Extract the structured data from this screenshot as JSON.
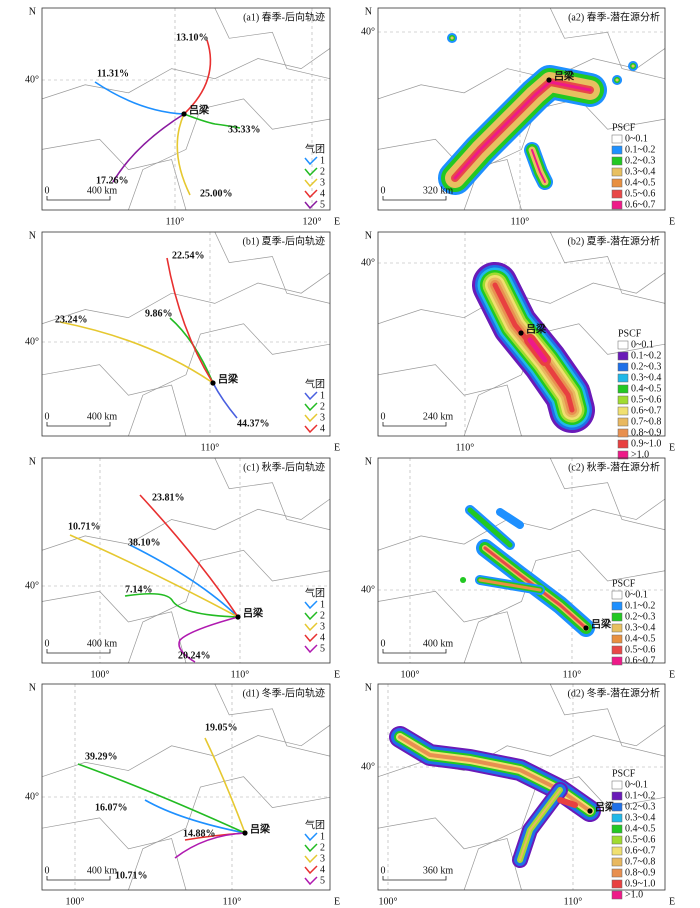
{
  "panels": [
    {
      "title": "(a1) 春季-后向轨迹",
      "north": "N",
      "east": "E",
      "lat": [
        "40°"
      ],
      "lon": [
        "110°",
        "120°"
      ],
      "scale": [
        "0",
        "400 km"
      ],
      "city": "吕梁",
      "legend_title": "气团",
      "legend": [
        {
          "label": "1",
          "color": "#1e90ff"
        },
        {
          "label": "2",
          "color": "#22bb22"
        },
        {
          "label": "3",
          "color": "#e6c830"
        },
        {
          "label": "4",
          "color": "#e83030"
        },
        {
          "label": "5",
          "color": "#8a1aa0"
        }
      ],
      "trajectories": [
        "11.31%",
        "33.33%",
        "25.00%",
        "13.10%",
        "17.26%"
      ]
    },
    {
      "title": "(a2) 春季-潜在源分析",
      "north": "N",
      "east": "E",
      "lat": [
        "40°"
      ],
      "lon": [
        "110°"
      ],
      "scale": [
        "0",
        "320 km"
      ],
      "city": "吕梁",
      "legend_title": "PSCF",
      "legend": [
        {
          "label": "0~0.1",
          "color": "#ffffff"
        },
        {
          "label": "0.1~0.2",
          "color": "#1e90ff"
        },
        {
          "label": "0.2~0.3",
          "color": "#22c822"
        },
        {
          "label": "0.3~0.4",
          "color": "#e8c060"
        },
        {
          "label": "0.4~0.5",
          "color": "#e89040"
        },
        {
          "label": "0.5~0.6",
          "color": "#e84848"
        },
        {
          "label": "0.6~0.7",
          "color": "#ee1a88"
        }
      ]
    },
    {
      "title": "(b1) 夏季-后向轨迹",
      "north": "N",
      "east": "E",
      "lat": [
        "40°"
      ],
      "lon": [
        "110°"
      ],
      "scale": [
        "0",
        "400 km"
      ],
      "city": "吕梁",
      "legend_title": "气团",
      "legend": [
        {
          "label": "1",
          "color": "#4a60e0"
        },
        {
          "label": "2",
          "color": "#22bb22"
        },
        {
          "label": "3",
          "color": "#e6c830"
        },
        {
          "label": "4",
          "color": "#e83030"
        }
      ],
      "trajectories": [
        "44.37%",
        "9.86%",
        "23.24%",
        "22.54%"
      ]
    },
    {
      "title": "(b2) 夏季-潜在源分析",
      "north": "N",
      "east": "E",
      "lat": [
        "40°"
      ],
      "lon": [
        "110°"
      ],
      "scale": [
        "0",
        "240 km"
      ],
      "city": "吕梁",
      "legend_title": "PSCF",
      "legend": [
        {
          "label": "0~0.1",
          "color": "#ffffff"
        },
        {
          "label": "0.1~0.2",
          "color": "#6a1ab8"
        },
        {
          "label": "0.2~0.3",
          "color": "#1e70e8"
        },
        {
          "label": "0.3~0.4",
          "color": "#20b8e8"
        },
        {
          "label": "0.4~0.5",
          "color": "#22c822"
        },
        {
          "label": "0.5~0.6",
          "color": "#a0dc30"
        },
        {
          "label": "0.6~0.7",
          "color": "#f0e070"
        },
        {
          "label": "0.7~0.8",
          "color": "#e8b860"
        },
        {
          "label": "0.8~0.9",
          "color": "#e89050"
        },
        {
          "label": "0.9~1.0",
          "color": "#e84040"
        },
        {
          "label": ">1.0",
          "color": "#ee1a88"
        }
      ]
    },
    {
      "title": "(c1) 秋季-后向轨迹",
      "north": "N",
      "east": "E",
      "lat": [
        "40°"
      ],
      "lon": [
        "100°",
        "110°"
      ],
      "scale": [
        "0",
        "400 km"
      ],
      "city": "吕梁",
      "legend_title": "气团",
      "legend": [
        {
          "label": "1",
          "color": "#1e90ff"
        },
        {
          "label": "2",
          "color": "#22bb22"
        },
        {
          "label": "3",
          "color": "#e6c830"
        },
        {
          "label": "4",
          "color": "#e83030"
        },
        {
          "label": "5",
          "color": "#b01ab0"
        }
      ],
      "trajectories": [
        "38.10%",
        "7.14%",
        "10.71%",
        "23.81%",
        "20.24%"
      ]
    },
    {
      "title": "(c2) 秋季-潜在源分析",
      "north": "N",
      "east": "E",
      "lat": [
        "40°"
      ],
      "lon": [
        "100°",
        "110°"
      ],
      "scale": [
        "0",
        "400 km"
      ],
      "city": "吕梁",
      "legend_title": "PSCF",
      "legend": [
        {
          "label": "0~0.1",
          "color": "#ffffff"
        },
        {
          "label": "0.1~0.2",
          "color": "#1e90ff"
        },
        {
          "label": "0.2~0.3",
          "color": "#22c822"
        },
        {
          "label": "0.3~0.4",
          "color": "#e8c060"
        },
        {
          "label": "0.4~0.5",
          "color": "#e89040"
        },
        {
          "label": "0.5~0.6",
          "color": "#e84848"
        },
        {
          "label": "0.6~0.7",
          "color": "#ee1a88"
        }
      ]
    },
    {
      "title": "(d1) 冬季-后向轨迹",
      "north": "N",
      "east": "E",
      "lat": [
        "40°"
      ],
      "lon": [
        "100°",
        "110°"
      ],
      "scale": [
        "0",
        "400 km"
      ],
      "city": "吕梁",
      "legend_title": "气团",
      "legend": [
        {
          "label": "1",
          "color": "#1e90ff"
        },
        {
          "label": "2",
          "color": "#22bb22"
        },
        {
          "label": "3",
          "color": "#e6c830"
        },
        {
          "label": "4",
          "color": "#e83030"
        },
        {
          "label": "5",
          "color": "#b01ab0"
        }
      ],
      "trajectories": [
        "16.07%",
        "39.29%",
        "19.05%",
        "14.88%",
        "10.71%"
      ]
    },
    {
      "title": "(d2) 冬季-潜在源分析",
      "north": "N",
      "east": "E",
      "lat": [
        "40°"
      ],
      "lon": [
        "100°",
        "110°"
      ],
      "scale": [
        "0",
        "360 km"
      ],
      "city": "吕梁",
      "legend_title": "PSCF",
      "legend": [
        {
          "label": "0~0.1",
          "color": "#ffffff"
        },
        {
          "label": "0.1~0.2",
          "color": "#6a1ab8"
        },
        {
          "label": "0.2~0.3",
          "color": "#1e70e8"
        },
        {
          "label": "0.3~0.4",
          "color": "#20b8e8"
        },
        {
          "label": "0.4~0.5",
          "color": "#22c822"
        },
        {
          "label": "0.5~0.6",
          "color": "#a0dc30"
        },
        {
          "label": "0.6~0.7",
          "color": "#f0e070"
        },
        {
          "label": "0.7~0.8",
          "color": "#e8b860"
        },
        {
          "label": "0.8~0.9",
          "color": "#e89050"
        },
        {
          "label": "0.9~1.0",
          "color": "#e84040"
        },
        {
          "label": ">1.0",
          "color": "#ee1a88"
        }
      ]
    }
  ]
}
